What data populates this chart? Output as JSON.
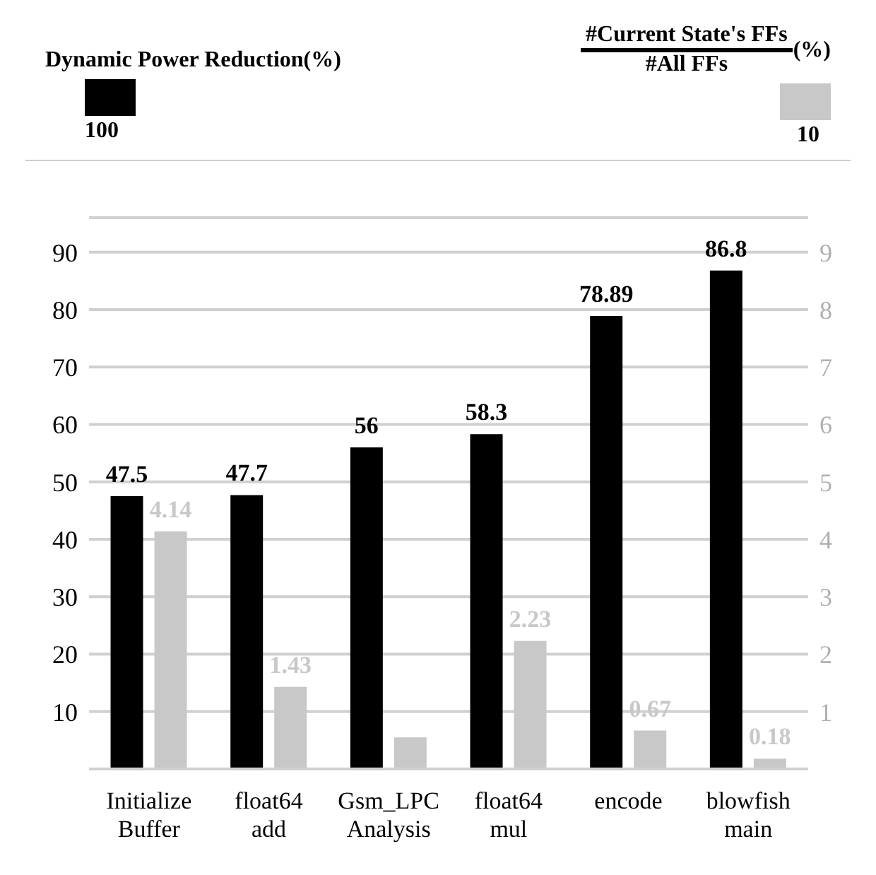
{
  "chart_data": {
    "type": "bar",
    "categories": [
      "Initialize Buffer",
      "float64 add",
      "Gsm_LPC Analysis",
      "float64 mul",
      "encode",
      "blowfish main"
    ],
    "series": [
      {
        "name": "Dynamic Power Reduction(%)",
        "color": "#000000",
        "values": [
          47.5,
          47.7,
          56,
          58.3,
          78.89,
          86.8
        ],
        "value_labels": [
          "47.5",
          "47.7",
          "56",
          "58.3",
          "78.89",
          "86.8"
        ]
      },
      {
        "name": "#Current State's FFs\n#All FFs (%)",
        "color": "#c8c8c8",
        "axis": "y2",
        "values": [
          4.14,
          1.43,
          0.55,
          2.23,
          0.67,
          0.18
        ],
        "value_labels": [
          "4.14",
          "1.43",
          null,
          "2.23",
          "0.67",
          "0.18"
        ]
      }
    ],
    "ylim": [
      0,
      96
    ],
    "yticks": [
      10,
      20,
      30,
      40,
      50,
      60,
      70,
      80,
      90
    ],
    "y2lim": [
      0,
      9.6
    ],
    "y2ticks": [
      1,
      2,
      3,
      4,
      5,
      6,
      7,
      8,
      9
    ],
    "grid": "y",
    "legend": "top",
    "annotations": [
      "100",
      "10"
    ]
  }
}
